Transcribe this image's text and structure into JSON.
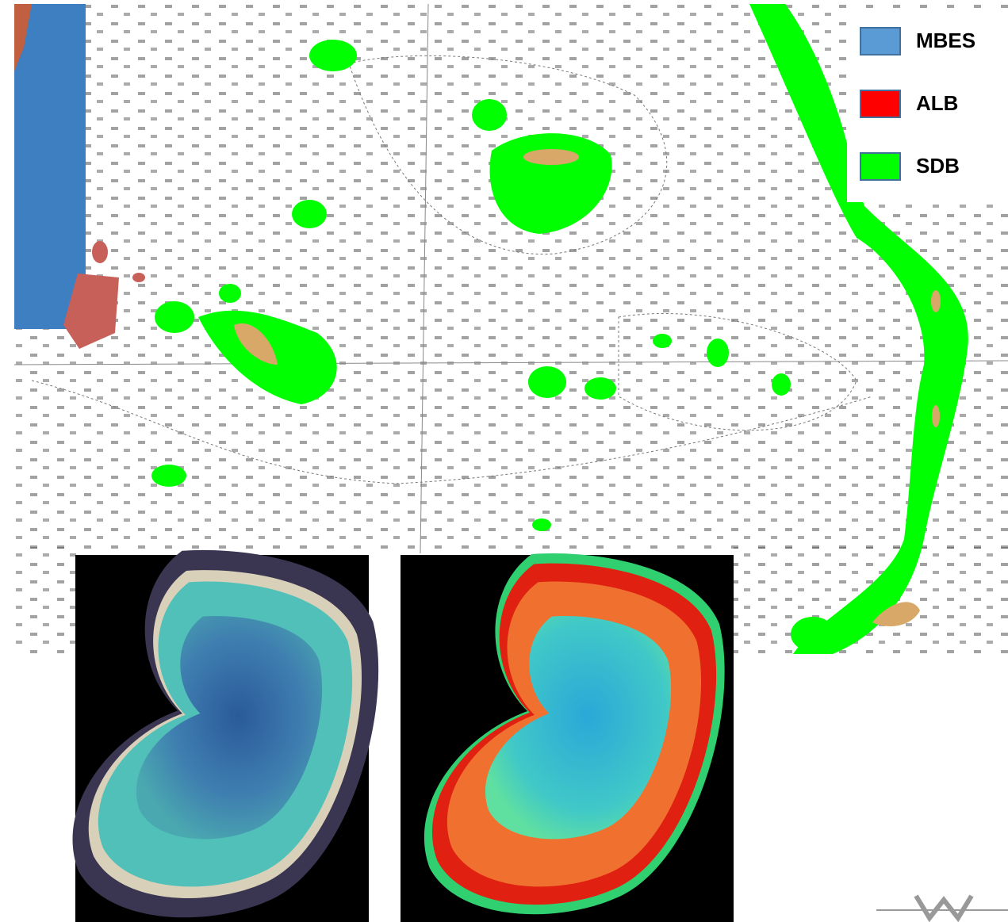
{
  "legend": {
    "items": [
      {
        "label": "MBES",
        "color": "#5b9bd5"
      },
      {
        "label": "ALB",
        "color": "#ff0000"
      },
      {
        "label": "SDB",
        "color": "#00ff00"
      }
    ]
  }
}
